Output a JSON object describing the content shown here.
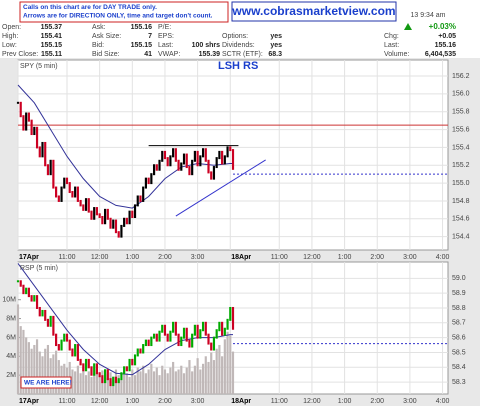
{
  "header": {
    "note": [
      "Calls on this chart are for DAY TRADE only.",
      "Arrows are for DIRECTION ONLY, time and target don't count."
    ],
    "url": "www.cobrasmarketview.com",
    "datetime": "13  9:34 am",
    "change_pct": "+0.03%"
  },
  "quote": {
    "columns": [
      [
        [
          "Open:",
          "155.37"
        ],
        [
          "High:",
          "155.41"
        ],
        [
          "Low:",
          "155.15"
        ],
        [
          "Prev Close:",
          "155.11"
        ]
      ],
      [
        [
          "Ask:",
          "155.16"
        ],
        [
          "Ask Size:",
          "7"
        ],
        [
          "Bid:",
          "155.15"
        ],
        [
          "Bid Size:",
          "41"
        ]
      ],
      [
        [
          "P/E:"
        ],
        [
          "EPS:"
        ],
        [
          "Last:",
          "100 shrs"
        ],
        [
          "VWAP:",
          "155.39"
        ]
      ],
      [
        [
          "Options:",
          "yes"
        ],
        [
          "Dividends:",
          "yes"
        ],
        [
          "SCTR (ETF):",
          "68.3"
        ]
      ]
    ],
    "right": [
      [
        "Chg:",
        "+0.05"
      ],
      [
        "Last:",
        "155.16"
      ],
      [
        "Volume:",
        "6,404,535"
      ]
    ]
  },
  "chart_data": [
    {
      "type": "candlestick",
      "title": "SPY (5 min)",
      "annotation": "LSH RS",
      "xlim": [
        0,
        158
      ],
      "xticks": [
        {
          "value": 0,
          "label": "17Apr"
        },
        {
          "value": 18,
          "label": "11:00"
        },
        {
          "value": 30,
          "label": "12:00"
        },
        {
          "value": 42,
          "label": "1:00"
        },
        {
          "value": 54,
          "label": "2:00"
        },
        {
          "value": 66,
          "label": "3:00"
        },
        {
          "value": 78,
          "label": "18Apr"
        },
        {
          "value": 96,
          "label": "11:00"
        },
        {
          "value": 108,
          "label": "12:00"
        },
        {
          "value": 120,
          "label": "1:00"
        },
        {
          "value": 132,
          "label": "2:00"
        },
        {
          "value": 144,
          "label": "3:00"
        },
        {
          "value": 156,
          "label": "4:00"
        }
      ],
      "ylim": [
        154.25,
        156.38
      ],
      "yticks": [
        154.4,
        154.6,
        154.8,
        {
          "value": 155,
          "label": "155.0"
        },
        155.2,
        155.4,
        155.6,
        155.8,
        {
          "value": 156,
          "label": "156.0"
        },
        156.2
      ],
      "up_color": "#000000",
      "down_color": "#cc0022",
      "closes": [
        155.9,
        155.75,
        155.6,
        155.78,
        155.7,
        155.55,
        155.62,
        155.4,
        155.3,
        155.45,
        155.2,
        155.1,
        155.25,
        154.95,
        154.85,
        154.8,
        154.95,
        155.05,
        155.0,
        154.9,
        154.85,
        154.95,
        154.8,
        154.75,
        154.7,
        154.82,
        154.68,
        154.6,
        154.72,
        154.65,
        154.62,
        154.55,
        154.7,
        154.6,
        154.5,
        154.58,
        154.45,
        154.4,
        154.52,
        154.6,
        154.55,
        154.68,
        154.62,
        154.75,
        154.85,
        154.8,
        154.95,
        155.05,
        155.0,
        155.1,
        155.2,
        155.15,
        155.25,
        155.35,
        155.28,
        155.2,
        155.3,
        155.38,
        155.25,
        155.15,
        155.22,
        155.32,
        155.18,
        155.1,
        155.25,
        155.35,
        155.2,
        155.3,
        155.38,
        155.25,
        155.12,
        155.05,
        155.18,
        155.28,
        155.35,
        155.22,
        155.3,
        155.4,
        155.37,
        155.16
      ],
      "ma": {
        "color": "#333399",
        "x": [
          0,
          6,
          12,
          18,
          24,
          30,
          36,
          42,
          48,
          54,
          60,
          66,
          72,
          78,
          79
        ],
        "values": [
          156.1,
          155.9,
          155.6,
          155.3,
          155.05,
          154.85,
          154.75,
          154.72,
          154.85,
          155.05,
          155.18,
          155.22,
          155.2,
          155.22,
          155.22
        ]
      },
      "lines": [
        {
          "color": "#cc3333",
          "dash": false,
          "x": [
            0,
            158
          ],
          "values": [
            155.65,
            155.65
          ]
        },
        {
          "color": "#3333cc",
          "dash": true,
          "x": [
            79,
            158
          ],
          "values": [
            155.1,
            155.1
          ]
        },
        {
          "color": "#3333cc",
          "dash": false,
          "x": [
            58,
            91
          ],
          "values": [
            154.63,
            155.26
          ]
        },
        {
          "color": "#000000",
          "dash": false,
          "x": [
            48,
            81
          ],
          "values": [
            155.42,
            155.42
          ]
        }
      ]
    },
    {
      "type": "candlestick",
      "title": "RSP (5 min)",
      "annotation": "WE ARE HERE!",
      "xlim": [
        0,
        158
      ],
      "xticks": [
        {
          "value": 0,
          "label": "17Apr"
        },
        {
          "value": 18,
          "label": "11:00"
        },
        {
          "value": 30,
          "label": "12:00"
        },
        {
          "value": 42,
          "label": "1:00"
        },
        {
          "value": 54,
          "label": "2:00"
        },
        {
          "value": 66,
          "label": "3:00"
        },
        {
          "value": 78,
          "label": "18Apr"
        },
        {
          "value": 96,
          "label": "11:00"
        },
        {
          "value": 108,
          "label": "12:00"
        },
        {
          "value": 120,
          "label": "1:00"
        },
        {
          "value": 132,
          "label": "2:00"
        },
        {
          "value": 144,
          "label": "3:00"
        },
        {
          "value": 156,
          "label": "4:00"
        }
      ],
      "ylim": [
        0,
        14
      ],
      "yticks": [
        {
          "value": 2,
          "label": "2M"
        },
        {
          "value": 4,
          "label": "4M"
        },
        {
          "value": 6,
          "label": "6M"
        },
        {
          "value": 8,
          "label": "8M"
        },
        {
          "value": 10,
          "label": "10M"
        }
      ],
      "y2lim": [
        58.22,
        59.11
      ],
      "y2ticks": [
        58.3,
        58.4,
        58.5,
        58.6,
        58.7,
        58.8,
        58.9,
        {
          "value": 59,
          "label": "59.0"
        }
      ],
      "up_color": "#00aa00",
      "down_color": "#cc0022",
      "volume": {
        "color": "#c0b8b8",
        "values": [
          9.5,
          7.2,
          6.8,
          6.0,
          5.5,
          4.8,
          5.2,
          5.8,
          4.5,
          4.0,
          4.8,
          5.2,
          3.8,
          4.2,
          4.6,
          3.6,
          3.0,
          3.2,
          2.8,
          3.4,
          2.6,
          2.4,
          3.0,
          2.2,
          2.8,
          2.0,
          2.4,
          1.8,
          2.2,
          2.6,
          1.9,
          2.5,
          2.1,
          1.7,
          2.3,
          1.8,
          2.6,
          2.0,
          1.6,
          2.4,
          2.2,
          1.8,
          2.6,
          2.0,
          2.8,
          2.4,
          3.0,
          2.2,
          2.6,
          3.2,
          2.4,
          2.8,
          2.0,
          3.0,
          2.6,
          2.2,
          2.8,
          3.4,
          2.4,
          2.6,
          3.0,
          2.2,
          2.8,
          3.6,
          2.4,
          3.0,
          3.8,
          2.6,
          3.2,
          4.0,
          3.4,
          4.4,
          3.6,
          4.8,
          5.2,
          4.0,
          5.8,
          6.6,
          6.2,
          4.5
        ]
      },
      "closes": [
        58.98,
        58.95,
        58.9,
        58.93,
        58.88,
        58.85,
        58.88,
        58.8,
        58.75,
        58.78,
        58.72,
        58.68,
        58.74,
        58.62,
        58.55,
        58.52,
        58.58,
        58.62,
        58.58,
        58.52,
        58.48,
        58.55,
        58.45,
        58.42,
        58.38,
        58.45,
        58.4,
        58.35,
        58.42,
        58.36,
        58.34,
        58.3,
        58.38,
        58.32,
        58.28,
        58.33,
        58.3,
        58.32,
        58.36,
        58.4,
        58.38,
        58.45,
        58.42,
        58.48,
        58.52,
        58.5,
        58.55,
        58.58,
        58.55,
        58.6,
        58.62,
        58.58,
        58.64,
        58.68,
        58.62,
        58.58,
        58.64,
        58.7,
        58.62,
        58.55,
        58.6,
        58.66,
        58.58,
        58.54,
        58.62,
        58.68,
        58.6,
        58.65,
        58.7,
        58.62,
        58.56,
        58.52,
        58.6,
        58.65,
        58.7,
        58.62,
        58.66,
        58.72,
        58.8,
        58.66
      ],
      "ma": {
        "color": "#333399",
        "x": [
          0,
          6,
          12,
          18,
          24,
          30,
          36,
          42,
          48,
          54,
          60,
          66,
          72,
          78,
          79
        ],
        "values": [
          59.1,
          58.95,
          58.8,
          58.65,
          58.52,
          58.42,
          58.36,
          58.35,
          58.42,
          58.52,
          58.58,
          58.6,
          58.6,
          58.62,
          58.62
        ]
      },
      "lines": [
        {
          "color": "#3333cc",
          "dash": true,
          "x": [
            79,
            158
          ],
          "values": [
            58.56,
            58.56
          ]
        }
      ]
    }
  ]
}
